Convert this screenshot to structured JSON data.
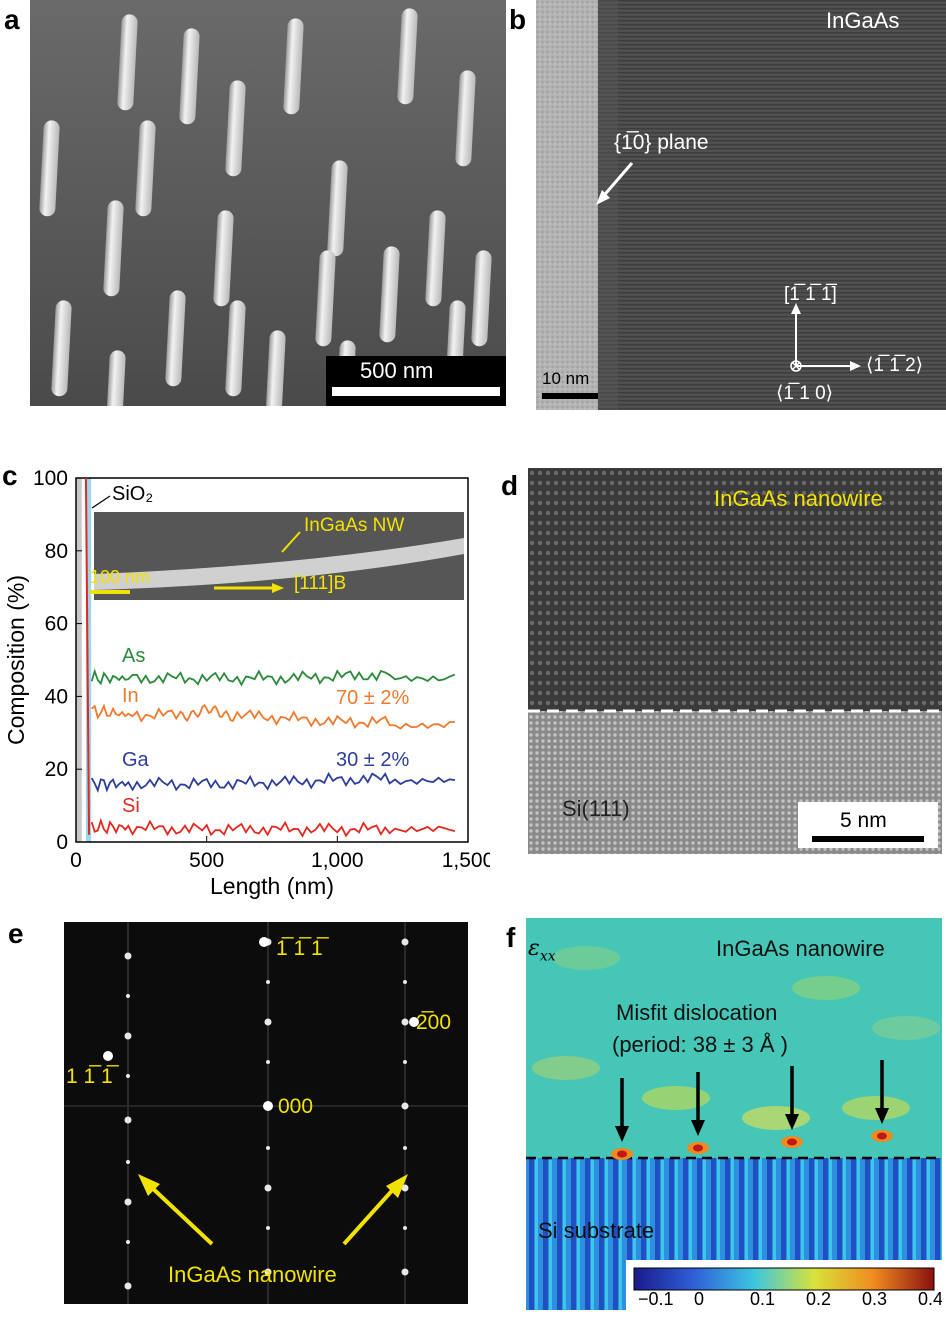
{
  "panels": {
    "a": {
      "letter": "a",
      "scalebar": "500 nm"
    },
    "b": {
      "letter": "b",
      "material": "InGaAs",
      "plane": "{1̅0} plane",
      "scalebar": "10 nm",
      "dir_up": "[1̅ 1̅ 1̅]",
      "dir_right": "⟨1̅ 1̅ 2⟩",
      "dir_in": "⟨1̅ 1 0⟩"
    },
    "c": {
      "letter": "c",
      "sio2_label": "SiO₂",
      "inset_label": "InGaAs NW",
      "inset_scalebar": "100 nm",
      "inset_dir": "[111]B",
      "as_label": "As",
      "in_label": "In",
      "ga_label": "Ga",
      "si_label": "Si",
      "in_comp": "70 ± 2%",
      "ga_comp": "30 ± 2%"
    },
    "d": {
      "letter": "d",
      "nanowire": "InGaAs nanowire",
      "substrate": "Si(111)",
      "scalebar": "5 nm"
    },
    "e": {
      "letter": "e",
      "spot_top": "1̅ 1̅ 1̅",
      "spot_right": "2̅00",
      "spot_left": "1 1̅ 1̅",
      "spot_center": "000",
      "nanowire": "InGaAs nanowire"
    },
    "f": {
      "letter": "f",
      "strain_symbol": "ε",
      "strain_sub": "xx",
      "nanowire": "InGaAs nanowire",
      "misfit": "Misfit dislocation",
      "period": "(period: 38 ± 3 Å )",
      "substrate": "Si substrate",
      "colorbar_ticks": [
        "−0.1",
        "0",
        "0.1",
        "0.2",
        "0.3",
        "0.4"
      ]
    }
  },
  "colors": {
    "as": "#2a8a3a",
    "in": "#ee7a2e",
    "ga": "#2e3e9a",
    "si": "#e02a20",
    "yellow": "#f2e200"
  },
  "chart_data": {
    "type": "line",
    "title": "",
    "xlabel": "Length (nm)",
    "ylabel": "Composition (%)",
    "xlim": [
      0,
      1500
    ],
    "ylim": [
      0,
      100
    ],
    "x_ticks": [
      "0",
      "500",
      "1,000",
      "1,500"
    ],
    "y_ticks": [
      "0",
      "20",
      "40",
      "60",
      "80",
      "100"
    ],
    "series": [
      {
        "name": "As",
        "x": [
          60,
          200,
          400,
          600,
          800,
          1000,
          1200,
          1450
        ],
        "values": [
          45,
          45,
          45,
          45,
          45,
          45.5,
          46,
          46
        ]
      },
      {
        "name": "In",
        "x": [
          60,
          200,
          400,
          500,
          600,
          800,
          1000,
          1200,
          1450
        ],
        "values": [
          36,
          35,
          35,
          36,
          35,
          34,
          33,
          33,
          33
        ]
      },
      {
        "name": "Ga",
        "x": [
          60,
          200,
          400,
          600,
          800,
          1000,
          1200,
          1450
        ],
        "values": [
          16,
          16,
          16,
          16,
          16.5,
          17,
          17.5,
          17
        ]
      },
      {
        "name": "Si",
        "x": [
          60,
          200,
          400,
          600,
          800,
          1000,
          1200,
          1450
        ],
        "values": [
          4,
          4,
          3.5,
          3.5,
          3.5,
          3.5,
          3.5,
          3
        ]
      }
    ]
  }
}
